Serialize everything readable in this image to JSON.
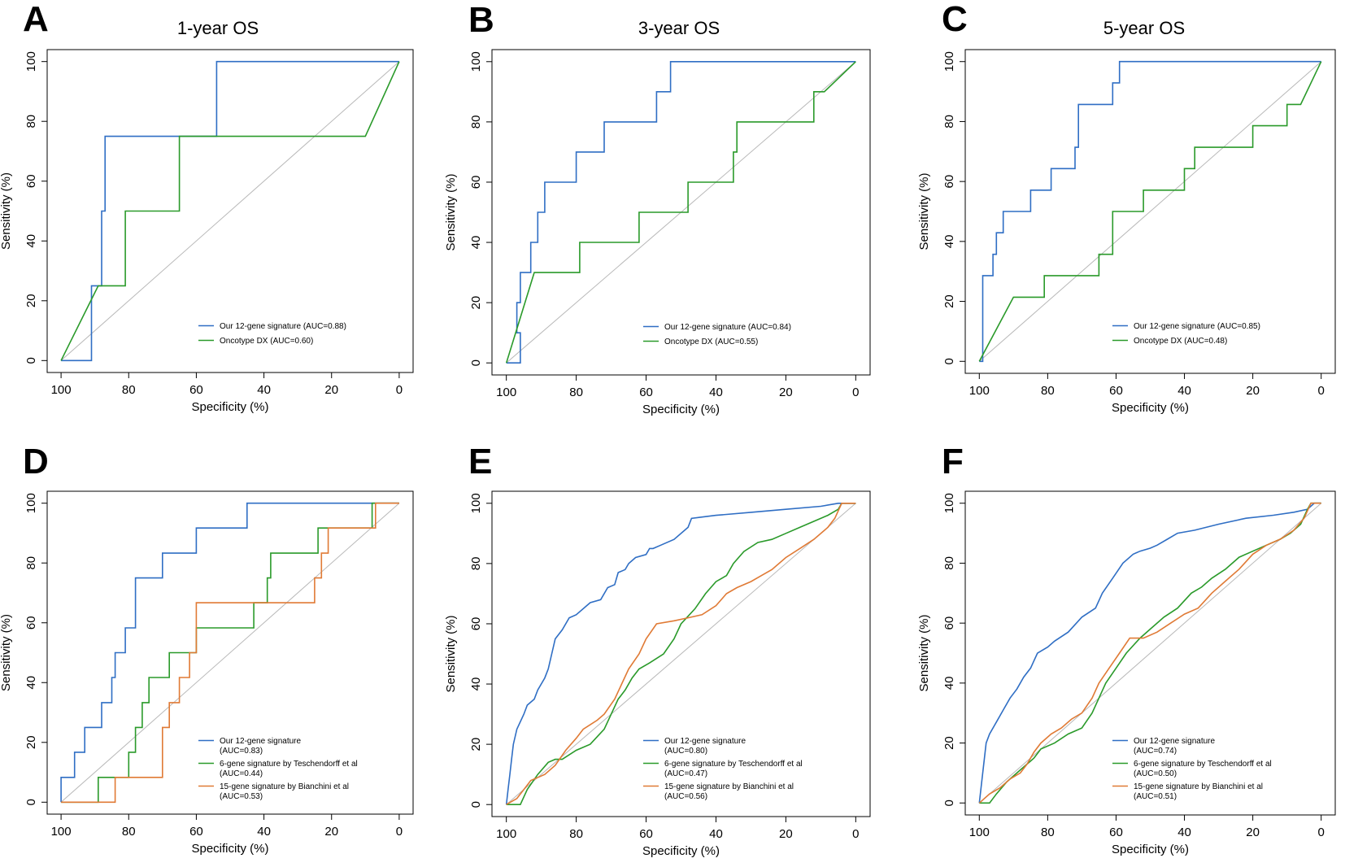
{
  "colors": {
    "signature12": "#2f6ec4",
    "oncotype": "#2a9a2a",
    "teschendorff": "#2a9a2a",
    "bianchini": "#e07a35",
    "diagonal": "#b8b8b8"
  },
  "chart_data": [
    {
      "panel": "A",
      "type": "line",
      "title": "1-year OS",
      "xlabel": "Specificity (%)",
      "ylabel": "Sensitivity (%)",
      "xlim": [
        100,
        0
      ],
      "ylim": [
        0,
        100
      ],
      "xticks": [
        "100",
        "80",
        "60",
        "40",
        "20",
        "0"
      ],
      "yticks": [
        "0",
        "20",
        "40",
        "60",
        "80",
        "100"
      ],
      "series": [
        {
          "name": "Our 12-gene signature",
          "legend": [
            "Our 12-gene signature (AUC=0.88)"
          ],
          "color": "signature12",
          "x": [
            100,
            91,
            91,
            88,
            88,
            87,
            87,
            54,
            54,
            0
          ],
          "y": [
            0,
            0,
            25,
            25,
            50,
            50,
            75,
            75,
            100,
            100
          ]
        },
        {
          "name": "Oncotype DX",
          "legend": [
            "Oncotype DX (AUC=0.60)"
          ],
          "color": "oncotype",
          "x": [
            100,
            89,
            81,
            81,
            65,
            65,
            10,
            0
          ],
          "y": [
            0,
            25,
            25,
            50,
            50,
            75,
            75,
            100
          ]
        }
      ]
    },
    {
      "panel": "B",
      "type": "line",
      "title": "3-year OS",
      "xlabel": "Specificity (%)",
      "ylabel": "Sensitivity (%)",
      "xlim": [
        100,
        0
      ],
      "ylim": [
        0,
        100
      ],
      "xticks": [
        "100",
        "80",
        "60",
        "40",
        "20",
        "0"
      ],
      "yticks": [
        "0",
        "20",
        "40",
        "60",
        "80",
        "100"
      ],
      "series": [
        {
          "name": "Our 12-gene signature",
          "legend": [
            "Our 12-gene signature (AUC=0.84)"
          ],
          "color": "signature12",
          "x": [
            100,
            96,
            96,
            97,
            97,
            96,
            96,
            93,
            93,
            91,
            91,
            89,
            89,
            80,
            80,
            72,
            72,
            57,
            57,
            53,
            53,
            0
          ],
          "y": [
            0,
            0,
            10,
            10,
            20,
            20,
            30,
            30,
            40,
            40,
            50,
            50,
            60,
            60,
            70,
            70,
            80,
            80,
            90,
            90,
            100,
            100
          ]
        },
        {
          "name": "Oncotype DX",
          "legend": [
            "Oncotype DX (AUC=0.55)"
          ],
          "color": "oncotype",
          "x": [
            100,
            92,
            79,
            79,
            62,
            62,
            48,
            48,
            35,
            35,
            34,
            34,
            12,
            12,
            9,
            0
          ],
          "y": [
            0,
            30,
            30,
            40,
            40,
            50,
            50,
            60,
            60,
            70,
            70,
            80,
            80,
            90,
            90,
            100
          ]
        }
      ]
    },
    {
      "panel": "C",
      "type": "line",
      "title": "5-year OS",
      "xlabel": "Specificity (%)",
      "ylabel": "Sensitivity (%)",
      "xlim": [
        100,
        0
      ],
      "ylim": [
        0,
        100
      ],
      "xticks": [
        "100",
        "80",
        "60",
        "40",
        "20",
        "0"
      ],
      "yticks": [
        "0",
        "20",
        "40",
        "60",
        "80",
        "100"
      ],
      "series": [
        {
          "name": "Our 12-gene signature",
          "legend": [
            "Our 12-gene signature (AUC=0.85)"
          ],
          "color": "signature12",
          "x": [
            100,
            99,
            99,
            96,
            96,
            95,
            95,
            93,
            93,
            85,
            85,
            79,
            79,
            72,
            72,
            71,
            71,
            61,
            61,
            59,
            59,
            0
          ],
          "y": [
            0,
            0,
            28.6,
            28.6,
            35.7,
            35.7,
            42.9,
            42.9,
            50,
            50,
            57.1,
            57.1,
            64.3,
            64.3,
            71.4,
            71.4,
            85.7,
            85.7,
            92.9,
            92.9,
            100,
            100
          ]
        },
        {
          "name": "Oncotype DX",
          "legend": [
            "Oncotype DX (AUC=0.48)"
          ],
          "color": "oncotype",
          "x": [
            100,
            90,
            81,
            81,
            65,
            65,
            61,
            61,
            52,
            52,
            40,
            40,
            37,
            37,
            20,
            20,
            10,
            10,
            6,
            0
          ],
          "y": [
            0,
            21.4,
            21.4,
            28.6,
            28.6,
            35.7,
            35.7,
            50,
            50,
            57.1,
            57.1,
            64.3,
            64.3,
            71.4,
            71.4,
            78.6,
            78.6,
            85.7,
            85.7,
            100
          ]
        }
      ]
    },
    {
      "panel": "D",
      "type": "line",
      "title": "",
      "xlabel": "Specificity (%)",
      "ylabel": "Sensitivity (%)",
      "xlim": [
        100,
        0
      ],
      "ylim": [
        0,
        100
      ],
      "xticks": [
        "100",
        "80",
        "60",
        "40",
        "20",
        "0"
      ],
      "yticks": [
        "0",
        "20",
        "40",
        "60",
        "80",
        "100"
      ],
      "series": [
        {
          "name": "Our 12-gene signature",
          "legend": [
            "Our 12-gene signature",
            "(AUC=0.83)"
          ],
          "color": "signature12",
          "x": [
            100,
            100,
            96,
            96,
            93,
            93,
            88,
            88,
            85,
            85,
            84,
            84,
            81,
            81,
            78,
            78,
            70,
            70,
            60,
            60,
            45,
            45,
            0
          ],
          "y": [
            0,
            8.3,
            8.3,
            16.7,
            16.7,
            25,
            25,
            33.3,
            33.3,
            41.7,
            41.7,
            50,
            50,
            58.3,
            58.3,
            75,
            75,
            83.3,
            83.3,
            91.7,
            91.7,
            100,
            100
          ]
        },
        {
          "name": "6-gene signature by Teschendorff et al",
          "legend": [
            "6-gene signature by Teschendorff et al",
            "(AUC=0.44)"
          ],
          "color": "teschendorff",
          "x": [
            100,
            89,
            89,
            80,
            80,
            78,
            78,
            76,
            76,
            74,
            74,
            68,
            68,
            60,
            60,
            55,
            55,
            43,
            43,
            39,
            39,
            38,
            38,
            24,
            24,
            8,
            8,
            0
          ],
          "y": [
            0,
            0,
            8.3,
            8.3,
            16.7,
            16.7,
            25,
            25,
            33.3,
            33.3,
            41.7,
            41.7,
            50,
            50,
            58.3,
            58.3,
            58.3,
            58.3,
            66.7,
            66.7,
            75,
            75,
            83.3,
            83.3,
            91.7,
            91.7,
            100,
            100
          ]
        },
        {
          "name": "15-gene signature by Bianchini et al",
          "legend": [
            "15-gene signature by Bianchini et al",
            "(AUC=0.53)"
          ],
          "color": "bianchini",
          "x": [
            100,
            84,
            84,
            70,
            70,
            68,
            68,
            65,
            65,
            62,
            62,
            60,
            60,
            25,
            25,
            23,
            23,
            21,
            21,
            7,
            7,
            0
          ],
          "y": [
            0,
            0,
            8.3,
            8.3,
            25,
            25,
            33.3,
            33.3,
            41.7,
            41.7,
            50,
            50,
            66.7,
            66.7,
            75,
            75,
            83.3,
            83.3,
            91.7,
            91.7,
            100,
            100
          ]
        }
      ]
    },
    {
      "panel": "E",
      "type": "line",
      "title": "",
      "xlabel": "Specificity (%)",
      "ylabel": "Sensitivity (%)",
      "xlim": [
        100,
        0
      ],
      "ylim": [
        0,
        100
      ],
      "xticks": [
        "100",
        "80",
        "60",
        "40",
        "20",
        "0"
      ],
      "yticks": [
        "0",
        "20",
        "40",
        "60",
        "80",
        "100"
      ],
      "series": [
        {
          "name": "Our 12-gene signature",
          "legend": [
            "Our 12-gene signature",
            "(AUC=0.80)"
          ],
          "color": "signature12",
          "x": [
            100,
            99.5,
            99,
            98.5,
            98,
            97,
            95,
            94,
            92,
            91,
            89,
            88,
            87,
            86,
            84,
            82,
            80,
            76,
            73,
            71,
            69,
            68,
            66,
            65,
            63,
            60,
            59,
            58,
            56,
            52,
            48,
            47,
            40,
            30,
            20,
            10,
            5,
            0
          ],
          "y": [
            0,
            5,
            10,
            15,
            20,
            25,
            30,
            33,
            35,
            38,
            42,
            45,
            50,
            55,
            58,
            62,
            63,
            67,
            68,
            72,
            73,
            77,
            78,
            80,
            82,
            83,
            85,
            85,
            86,
            88,
            92,
            95,
            96,
            97,
            98,
            99,
            100,
            100
          ]
        },
        {
          "name": "6-gene signature by Teschendorff et al",
          "legend": [
            "6-gene signature by Teschendorff et al",
            "(AUC=0.47)"
          ],
          "color": "teschendorff",
          "x": [
            100,
            96,
            94,
            91,
            88,
            86,
            84,
            80,
            76,
            72,
            70,
            68,
            66,
            64,
            62,
            59,
            55,
            52,
            50,
            46,
            43,
            40,
            37,
            35,
            32,
            28,
            24,
            20,
            16,
            12,
            8,
            5,
            4,
            0
          ],
          "y": [
            0,
            0,
            5,
            10,
            14,
            15,
            15,
            18,
            20,
            25,
            30,
            35,
            38,
            42,
            45,
            47,
            50,
            55,
            60,
            65,
            70,
            74,
            76,
            80,
            84,
            87,
            88,
            90,
            92,
            94,
            96,
            98,
            100,
            100
          ]
        },
        {
          "name": "15-gene signature by Bianchini et al",
          "legend": [
            "15-gene signature by Bianchini et al",
            "(AUC=0.56)"
          ],
          "color": "bianchini",
          "x": [
            100,
            97,
            95,
            93,
            89,
            86,
            83,
            80,
            78,
            74,
            72,
            69,
            67,
            65,
            62,
            60,
            57,
            52,
            48,
            44,
            40,
            37,
            34,
            30,
            27,
            24,
            20,
            16,
            12,
            8,
            6,
            4,
            0
          ],
          "y": [
            0,
            2,
            5,
            8,
            10,
            13,
            18,
            22,
            25,
            28,
            30,
            35,
            40,
            45,
            50,
            55,
            60,
            61,
            62,
            63,
            66,
            70,
            72,
            74,
            76,
            78,
            82,
            85,
            88,
            92,
            95,
            100,
            100
          ]
        }
      ]
    },
    {
      "panel": "F",
      "type": "line",
      "title": "",
      "xlabel": "Specificity (%)",
      "ylabel": "Sensitivity (%)",
      "xlim": [
        100,
        0
      ],
      "ylim": [
        0,
        100
      ],
      "xticks": [
        "100",
        "80",
        "60",
        "40",
        "20",
        "0"
      ],
      "yticks": [
        "0",
        "20",
        "40",
        "60",
        "80",
        "100"
      ],
      "series": [
        {
          "name": "Our 12-gene signature",
          "legend": [
            "Our 12-gene signature",
            "(AUC=0.74)"
          ],
          "color": "signature12",
          "x": [
            100,
            99.5,
            99,
            98.5,
            98,
            97,
            95,
            93,
            91,
            89,
            87,
            85,
            83,
            80,
            78,
            74,
            70,
            66,
            64,
            61,
            58,
            55,
            53,
            50,
            48,
            45,
            42,
            37,
            30,
            22,
            14,
            8,
            4,
            2,
            0
          ],
          "y": [
            0,
            5,
            10,
            15,
            20,
            23,
            27,
            31,
            35,
            38,
            42,
            45,
            50,
            52,
            54,
            57,
            62,
            65,
            70,
            75,
            80,
            83,
            84,
            85,
            86,
            88,
            90,
            91,
            93,
            95,
            96,
            97,
            98,
            100,
            100
          ]
        },
        {
          "name": "6-gene signature by Teschendorff et al",
          "legend": [
            "6-gene signature by Teschendorff et al",
            "(AUC=0.50)"
          ],
          "color": "teschendorff",
          "x": [
            100,
            97,
            95,
            92,
            89,
            86,
            84,
            82,
            78,
            74,
            70,
            67,
            65,
            63,
            60,
            57,
            53,
            50,
            46,
            42,
            38,
            35,
            32,
            28,
            24,
            20,
            16,
            12,
            9,
            6,
            4,
            3,
            0
          ],
          "y": [
            0,
            0,
            3,
            7,
            10,
            13,
            15,
            18,
            20,
            23,
            25,
            30,
            35,
            40,
            45,
            50,
            55,
            58,
            62,
            65,
            70,
            72,
            75,
            78,
            82,
            84,
            86,
            88,
            90,
            93,
            98,
            100,
            100
          ]
        },
        {
          "name": "15-gene signature by Bianchini et al",
          "legend": [
            "15-gene signature by Bianchini et al",
            "(AUC=0.51)"
          ],
          "color": "bianchini",
          "x": [
            100,
            97,
            94,
            91,
            88,
            86,
            84,
            82,
            79,
            76,
            73,
            70,
            67,
            65,
            62,
            59,
            56,
            52,
            48,
            44,
            40,
            36,
            32,
            28,
            24,
            20,
            16,
            12,
            8,
            5,
            3,
            0
          ],
          "y": [
            0,
            3,
            5,
            8,
            10,
            13,
            17,
            20,
            23,
            25,
            28,
            30,
            35,
            40,
            45,
            50,
            55,
            55,
            57,
            60,
            63,
            65,
            70,
            74,
            78,
            83,
            86,
            88,
            91,
            95,
            100,
            100
          ]
        }
      ]
    }
  ]
}
